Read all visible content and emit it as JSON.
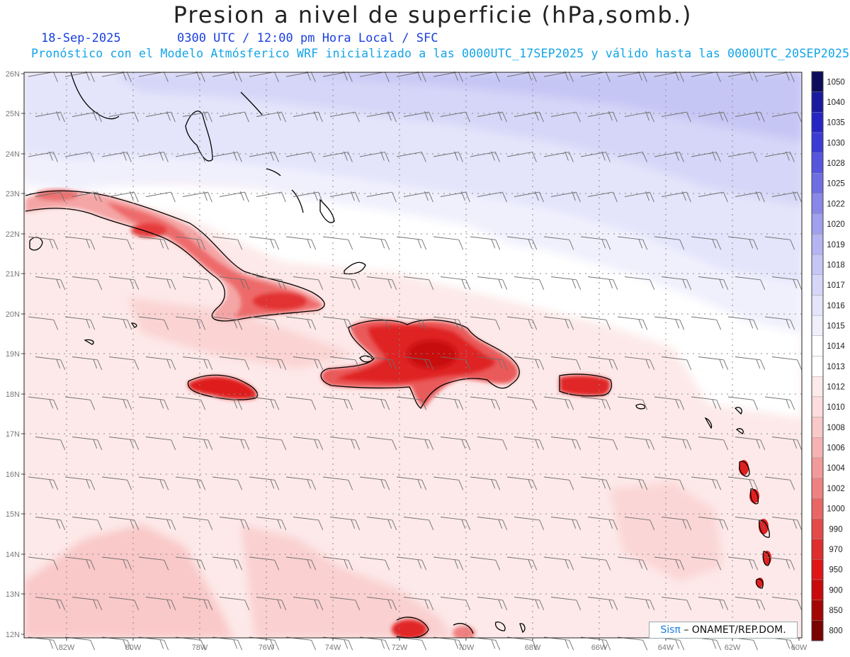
{
  "title": "Presion a nivel de superficie (hPa,somb.)",
  "date": "18-Sep-2025",
  "time_label": "0300 UTC / 12:00 pm Hora Local / SFC",
  "forecast_line": "Pronóstico con el Modelo Atmósferico WRF inicializado a las 0000UTC_17SEP2025 y válido hasta las  0000UTC_20SEP2025",
  "lat_labels": [
    "26N",
    "25N",
    "24N",
    "23N",
    "22N",
    "21N",
    "20N",
    "19N",
    "18N",
    "17N",
    "16N",
    "15N",
    "14N",
    "13N",
    "12N"
  ],
  "lon_labels": [
    "82W",
    "80W",
    "78W",
    "76W",
    "74W",
    "72W",
    "70W",
    "68W",
    "66W",
    "64W",
    "62W",
    "60W"
  ],
  "legend": [
    {
      "label": "1050",
      "color": "#0d0d5c"
    },
    {
      "label": "1040",
      "color": "#1a1aa0"
    },
    {
      "label": "1035",
      "color": "#2626c4"
    },
    {
      "label": "1030",
      "color": "#3b3bd6"
    },
    {
      "label": "1028",
      "color": "#5555dd"
    },
    {
      "label": "1025",
      "color": "#6e6ee2"
    },
    {
      "label": "1022",
      "color": "#8888e8"
    },
    {
      "label": "1020",
      "color": "#a0a0ee"
    },
    {
      "label": "1019",
      "color": "#b4b4f2"
    },
    {
      "label": "1018",
      "color": "#c6c6f5"
    },
    {
      "label": "1017",
      "color": "#d6d6f8"
    },
    {
      "label": "1016",
      "color": "#e4e4fb"
    },
    {
      "label": "1015",
      "color": "#f0f0fd"
    },
    {
      "label": "1014",
      "color": "#ffffff"
    },
    {
      "label": "1013",
      "color": "#ffffff"
    },
    {
      "label": "1012",
      "color": "#fdeaea"
    },
    {
      "label": "1010",
      "color": "#fcdcdc"
    },
    {
      "label": "1008",
      "color": "#f9c8c8"
    },
    {
      "label": "1006",
      "color": "#f6b2b2"
    },
    {
      "label": "1004",
      "color": "#f29a9a"
    },
    {
      "label": "1002",
      "color": "#ee8282"
    },
    {
      "label": "1000",
      "color": "#ea6666"
    },
    {
      "label": "990",
      "color": "#e44a4a"
    },
    {
      "label": "970",
      "color": "#df2e2e"
    },
    {
      "label": "950",
      "color": "#e01515"
    },
    {
      "label": "900",
      "color": "#c80a0a"
    },
    {
      "label": "850",
      "color": "#a40606"
    },
    {
      "label": "800",
      "color": "#7a0303"
    }
  ],
  "credit": {
    "brand": "Sisπ",
    "text": "– ONAMET/REP.DOM."
  }
}
